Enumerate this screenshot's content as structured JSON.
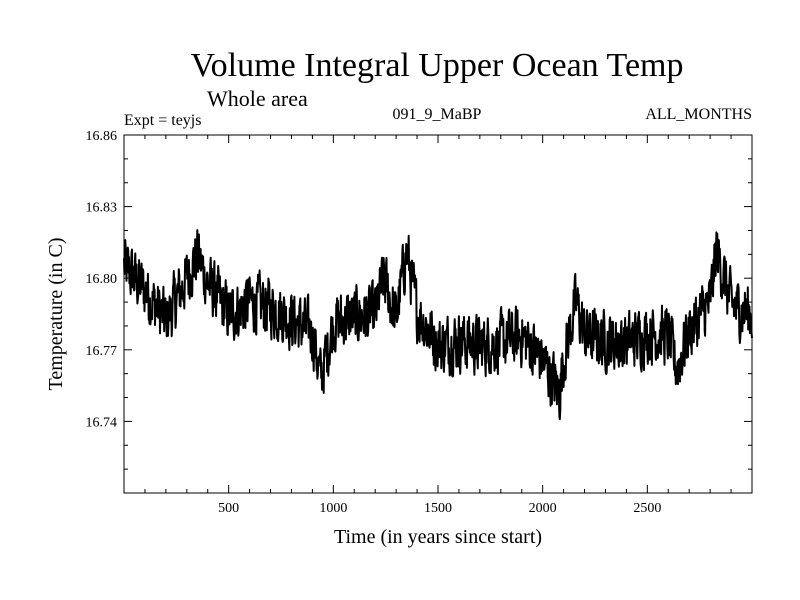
{
  "chart_data": {
    "type": "line",
    "title": "Volume Integral Upper Ocean Temp",
    "subtitle": "Whole area",
    "header_left": "Expt = teyjs",
    "header_center": "091_9_MaBP",
    "header_right": "ALL_MONTHS",
    "xlabel": "Time (in years since start)",
    "ylabel": "Temperature (in C)",
    "xlim": [
      0,
      3000
    ],
    "ylim": [
      16.71,
      16.86
    ],
    "xticks": [
      500,
      1000,
      1500,
      2000,
      2500
    ],
    "xtick_labels": [
      "500",
      "1000",
      "1500",
      "2000",
      "2500"
    ],
    "yticks": [
      16.74,
      16.77,
      16.8,
      16.83,
      16.86
    ],
    "ytick_labels": [
      "16.74",
      "16.77",
      "16.80",
      "16.83",
      "16.86"
    ],
    "grid": false,
    "line_color": "#000000",
    "series": [
      {
        "name": "Volume Integral Upper Ocean Temp",
        "x": [
          0,
          100,
          200,
          300,
          350,
          400,
          500,
          600,
          700,
          800,
          900,
          940,
          1000,
          1100,
          1200,
          1240,
          1300,
          1350,
          1400,
          1500,
          1600,
          1700,
          1800,
          1900,
          2000,
          2080,
          2100,
          2160,
          2200,
          2300,
          2400,
          2500,
          2600,
          2640,
          2700,
          2800,
          2830,
          2900,
          3000
        ],
        "values": [
          16.805,
          16.795,
          16.782,
          16.8,
          16.81,
          16.798,
          16.785,
          16.79,
          16.788,
          16.783,
          16.777,
          16.758,
          16.781,
          16.784,
          16.785,
          16.8,
          16.783,
          16.812,
          16.786,
          16.772,
          16.774,
          16.772,
          16.773,
          16.776,
          16.766,
          16.752,
          16.766,
          16.79,
          16.776,
          16.774,
          16.773,
          16.777,
          16.776,
          16.762,
          16.778,
          16.79,
          16.812,
          16.789,
          16.785
        ]
      }
    ]
  }
}
